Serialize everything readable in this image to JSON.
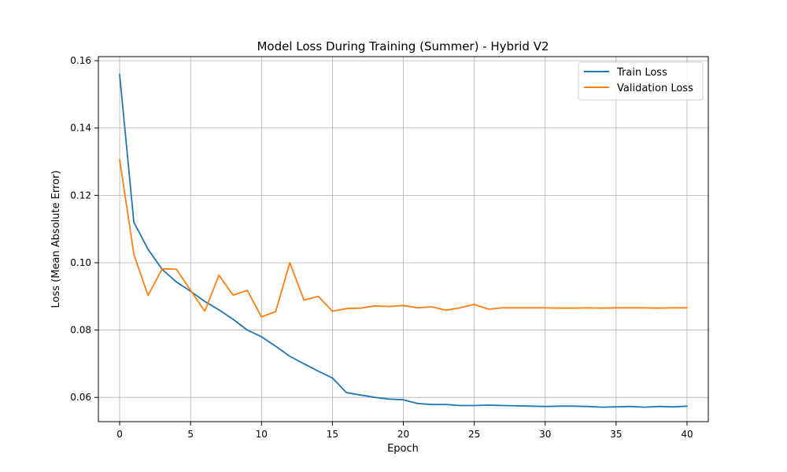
{
  "chart_data": {
    "type": "line",
    "title": "Model Loss During Training (Summer) - Hybrid V2",
    "xlabel": "Epoch",
    "ylabel": "Loss (Mean Absolute Error)",
    "xlim": [
      -1.5,
      41.5
    ],
    "ylim": [
      0.0528,
      0.1612
    ],
    "xticks": [
      0,
      5,
      10,
      15,
      20,
      25,
      30,
      35,
      40
    ],
    "yticks": [
      0.06,
      0.08,
      0.1,
      0.12,
      0.14,
      0.16
    ],
    "ytick_labels": [
      "0.06",
      "0.08",
      "0.10",
      "0.12",
      "0.14",
      "0.16"
    ],
    "grid": true,
    "legend_position": "top-right",
    "x": [
      0,
      1,
      2,
      3,
      4,
      5,
      6,
      7,
      8,
      9,
      10,
      11,
      12,
      13,
      14,
      15,
      16,
      17,
      18,
      19,
      20,
      21,
      22,
      23,
      24,
      25,
      26,
      27,
      28,
      29,
      30,
      31,
      32,
      33,
      34,
      35,
      36,
      37,
      38,
      39,
      40
    ],
    "series": [
      {
        "name": "Train Loss",
        "color": "#1f77b4",
        "values": [
          0.156,
          0.112,
          0.104,
          0.098,
          0.0943,
          0.0915,
          0.0885,
          0.086,
          0.0832,
          0.08,
          0.078,
          0.0752,
          0.0722,
          0.07,
          0.0678,
          0.0658,
          0.0614,
          0.0607,
          0.06,
          0.0595,
          0.0593,
          0.0582,
          0.0579,
          0.0579,
          0.0576,
          0.0576,
          0.0577,
          0.0576,
          0.0575,
          0.0574,
          0.0573,
          0.0574,
          0.0574,
          0.0573,
          0.0571,
          0.0572,
          0.0573,
          0.0571,
          0.0573,
          0.0572,
          0.0574
        ]
      },
      {
        "name": "Validation Loss",
        "color": "#ff7f0e",
        "values": [
          0.1307,
          0.1025,
          0.0903,
          0.0982,
          0.0981,
          0.0918,
          0.0856,
          0.0963,
          0.0904,
          0.0918,
          0.0839,
          0.0855,
          0.1,
          0.0889,
          0.09,
          0.0856,
          0.0864,
          0.0865,
          0.0872,
          0.087,
          0.0873,
          0.0866,
          0.0869,
          0.0859,
          0.0866,
          0.0876,
          0.0862,
          0.0866,
          0.0866,
          0.0866,
          0.0866,
          0.0865,
          0.0865,
          0.0866,
          0.0865,
          0.0866,
          0.0866,
          0.0866,
          0.0865,
          0.0866,
          0.0866
        ]
      }
    ]
  }
}
